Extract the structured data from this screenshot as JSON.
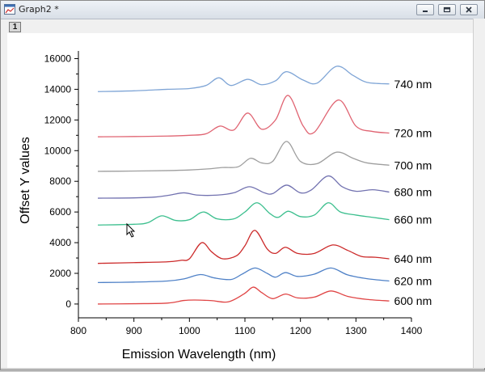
{
  "window": {
    "title": "Graph2 *",
    "layer_number": "1",
    "icons": {
      "app": "graph-window-icon",
      "minimize": "minimize-icon",
      "restore": "restore-icon",
      "close": "close-icon"
    }
  },
  "chart_data": {
    "type": "line",
    "xlabel": "Emission Wavelength (nm)",
    "ylabel": "Offset Y values",
    "xlim": [
      800,
      1400
    ],
    "ylim": [
      -900,
      16500
    ],
    "x_ticks": [
      "800",
      "900",
      "1000",
      "1100",
      "1200",
      "1300",
      "1400"
    ],
    "y_ticks": [
      "0",
      "2000",
      "4000",
      "6000",
      "8000",
      "10000",
      "12000",
      "14000",
      "16000"
    ],
    "grid": false,
    "series": [
      {
        "name": "600 nm",
        "color": "#e04545",
        "points": [
          [
            835,
            0
          ],
          [
            900,
            20
          ],
          [
            960,
            60
          ],
          [
            990,
            230
          ],
          [
            1010,
            260
          ],
          [
            1040,
            220
          ],
          [
            1070,
            140
          ],
          [
            1098,
            650
          ],
          [
            1115,
            1100
          ],
          [
            1130,
            750
          ],
          [
            1150,
            350
          ],
          [
            1173,
            650
          ],
          [
            1195,
            400
          ],
          [
            1225,
            450
          ],
          [
            1255,
            850
          ],
          [
            1285,
            500
          ],
          [
            1320,
            300
          ],
          [
            1360,
            200
          ]
        ]
      },
      {
        "name": "620 nm",
        "color": "#4f81c7",
        "points": [
          [
            835,
            1400
          ],
          [
            900,
            1430
          ],
          [
            960,
            1500
          ],
          [
            990,
            1640
          ],
          [
            1020,
            1920
          ],
          [
            1045,
            1700
          ],
          [
            1075,
            1600
          ],
          [
            1095,
            1950
          ],
          [
            1118,
            2350
          ],
          [
            1140,
            2000
          ],
          [
            1155,
            1750
          ],
          [
            1173,
            2050
          ],
          [
            1195,
            1800
          ],
          [
            1225,
            1950
          ],
          [
            1255,
            2350
          ],
          [
            1285,
            1900
          ],
          [
            1320,
            1650
          ],
          [
            1360,
            1500
          ]
        ]
      },
      {
        "name": "640 nm",
        "color": "#cc2a2a",
        "points": [
          [
            835,
            2650
          ],
          [
            900,
            2700
          ],
          [
            960,
            2750
          ],
          [
            985,
            2850
          ],
          [
            1000,
            2950
          ],
          [
            1022,
            4000
          ],
          [
            1040,
            3400
          ],
          [
            1060,
            2950
          ],
          [
            1085,
            3150
          ],
          [
            1100,
            3800
          ],
          [
            1118,
            4800
          ],
          [
            1140,
            3600
          ],
          [
            1155,
            3300
          ],
          [
            1173,
            3700
          ],
          [
            1195,
            3300
          ],
          [
            1225,
            3300
          ],
          [
            1258,
            3850
          ],
          [
            1285,
            3500
          ],
          [
            1310,
            3100
          ],
          [
            1335,
            3050
          ],
          [
            1360,
            2950
          ]
        ]
      },
      {
        "name": "660 nm",
        "color": "#3cbf8e",
        "points": [
          [
            835,
            5150
          ],
          [
            900,
            5200
          ],
          [
            925,
            5300
          ],
          [
            950,
            5750
          ],
          [
            975,
            5450
          ],
          [
            1000,
            5500
          ],
          [
            1025,
            6000
          ],
          [
            1050,
            5550
          ],
          [
            1080,
            5550
          ],
          [
            1100,
            6000
          ],
          [
            1122,
            6600
          ],
          [
            1145,
            5900
          ],
          [
            1160,
            5650
          ],
          [
            1178,
            6050
          ],
          [
            1200,
            5700
          ],
          [
            1225,
            5800
          ],
          [
            1250,
            6600
          ],
          [
            1272,
            6000
          ],
          [
            1300,
            5800
          ],
          [
            1330,
            5650
          ],
          [
            1360,
            5500
          ]
        ]
      },
      {
        "name": "680 nm",
        "color": "#7272b0",
        "points": [
          [
            835,
            6900
          ],
          [
            900,
            6920
          ],
          [
            940,
            6980
          ],
          [
            965,
            7100
          ],
          [
            990,
            7250
          ],
          [
            1015,
            7100
          ],
          [
            1050,
            7100
          ],
          [
            1080,
            7250
          ],
          [
            1108,
            7650
          ],
          [
            1135,
            7250
          ],
          [
            1150,
            7200
          ],
          [
            1175,
            7750
          ],
          [
            1200,
            7250
          ],
          [
            1220,
            7450
          ],
          [
            1250,
            8350
          ],
          [
            1275,
            7650
          ],
          [
            1300,
            7350
          ],
          [
            1330,
            7450
          ],
          [
            1360,
            7300
          ]
        ]
      },
      {
        "name": "700 nm",
        "color": "#9e9e9e",
        "points": [
          [
            835,
            8650
          ],
          [
            900,
            8670
          ],
          [
            960,
            8700
          ],
          [
            1000,
            8740
          ],
          [
            1030,
            8800
          ],
          [
            1060,
            8900
          ],
          [
            1088,
            8950
          ],
          [
            1110,
            9500
          ],
          [
            1130,
            9200
          ],
          [
            1150,
            9300
          ],
          [
            1175,
            10600
          ],
          [
            1200,
            9300
          ],
          [
            1230,
            9150
          ],
          [
            1265,
            9900
          ],
          [
            1295,
            9500
          ],
          [
            1320,
            9200
          ],
          [
            1360,
            9050
          ]
        ]
      },
      {
        "name": "720 nm",
        "color": "#e06472",
        "points": [
          [
            835,
            10900
          ],
          [
            900,
            10920
          ],
          [
            960,
            10950
          ],
          [
            1000,
            11000
          ],
          [
            1030,
            11100
          ],
          [
            1055,
            11600
          ],
          [
            1080,
            11350
          ],
          [
            1105,
            12450
          ],
          [
            1130,
            11400
          ],
          [
            1155,
            12000
          ],
          [
            1178,
            13600
          ],
          [
            1205,
            11600
          ],
          [
            1225,
            11200
          ],
          [
            1268,
            13300
          ],
          [
            1300,
            11600
          ],
          [
            1330,
            11250
          ],
          [
            1360,
            11150
          ]
        ]
      },
      {
        "name": "740 nm",
        "color": "#7fa5d6",
        "points": [
          [
            835,
            13850
          ],
          [
            900,
            13900
          ],
          [
            960,
            14000
          ],
          [
            1000,
            14050
          ],
          [
            1030,
            14250
          ],
          [
            1053,
            14750
          ],
          [
            1075,
            14250
          ],
          [
            1105,
            14650
          ],
          [
            1130,
            14300
          ],
          [
            1155,
            14550
          ],
          [
            1175,
            15150
          ],
          [
            1205,
            14600
          ],
          [
            1230,
            14400
          ],
          [
            1265,
            15500
          ],
          [
            1295,
            14900
          ],
          [
            1320,
            14450
          ],
          [
            1360,
            14350
          ]
        ]
      }
    ]
  }
}
